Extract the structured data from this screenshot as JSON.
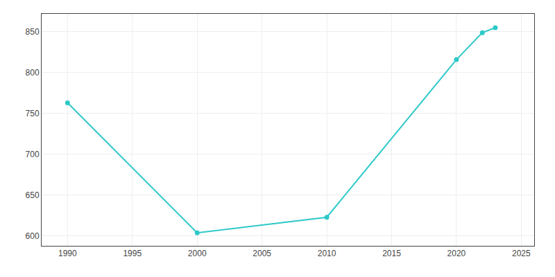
{
  "chart_data": {
    "type": "line",
    "x": [
      1990,
      2000,
      2010,
      2020,
      2022,
      2023
    ],
    "values": [
      763,
      604,
      623,
      816,
      849,
      855
    ],
    "color": "#2EC8C8",
    "marker": "circle",
    "xlim": [
      1988,
      2026
    ],
    "ylim": [
      588,
      872
    ],
    "xticks": [
      1990,
      1995,
      2000,
      2005,
      2010,
      2015,
      2020,
      2025
    ],
    "yticks": [
      600,
      650,
      700,
      750,
      800,
      850
    ],
    "grid": true
  }
}
